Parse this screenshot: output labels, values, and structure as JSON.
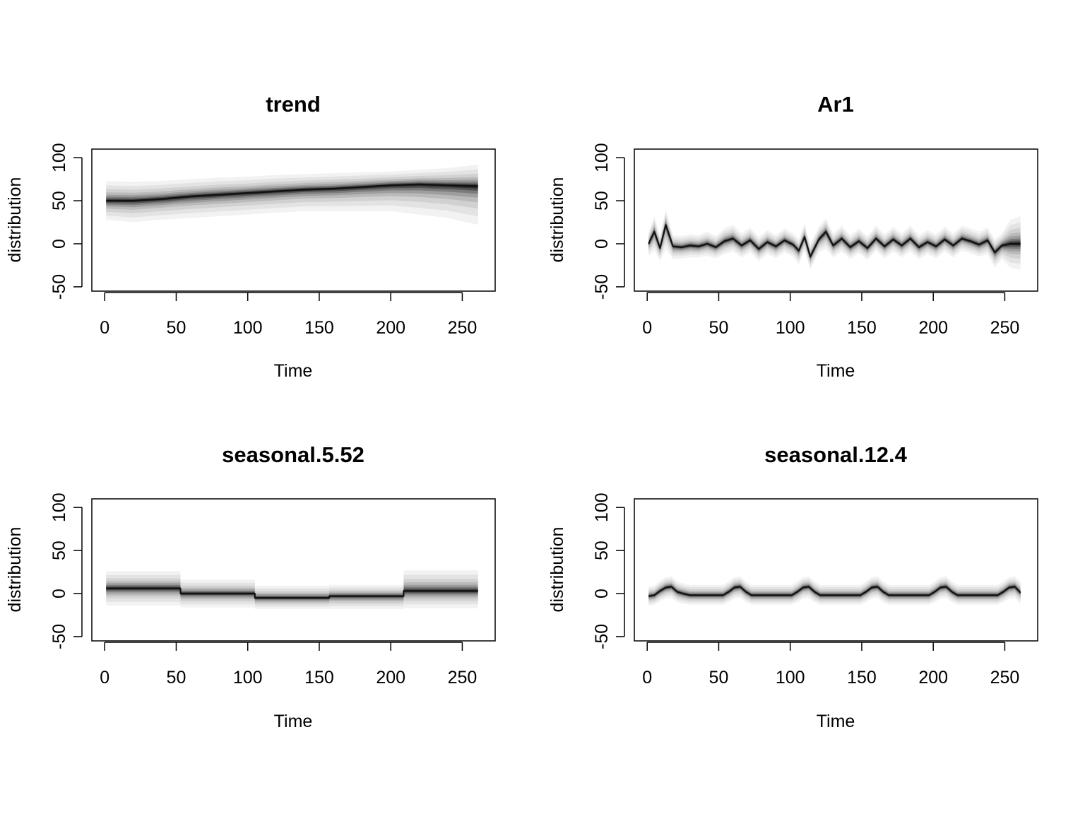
{
  "chart_data": [
    {
      "type": "area",
      "title": "trend",
      "xlabel": "Time",
      "ylabel": "distribution",
      "xlim": [
        -9,
        273
      ],
      "ylim": [
        -55,
        110
      ],
      "xticks": [
        0,
        50,
        100,
        150,
        200,
        250
      ],
      "yticks": [
        -50,
        0,
        50,
        100
      ],
      "grid": false,
      "legend": "none",
      "series": [
        {
          "x": [
            1,
            20,
            40,
            60,
            80,
            100,
            120,
            140,
            160,
            180,
            200,
            220,
            240,
            261
          ],
          "median": [
            50,
            50,
            52,
            55,
            57,
            59,
            61,
            63,
            64,
            66,
            68,
            69,
            68,
            67
          ],
          "lower": [
            28,
            25,
            28,
            30,
            32,
            34,
            36,
            38,
            38,
            38,
            38,
            34,
            30,
            22
          ],
          "upper": [
            73,
            72,
            73,
            75,
            77,
            78,
            80,
            81,
            82,
            83,
            84,
            86,
            88,
            92
          ]
        }
      ]
    },
    {
      "type": "area",
      "title": "Ar1",
      "xlabel": "Time",
      "ylabel": "distribution",
      "xlim": [
        -9,
        273
      ],
      "ylim": [
        -55,
        110
      ],
      "xticks": [
        0,
        50,
        100,
        150,
        200,
        250
      ],
      "yticks": [
        -50,
        0,
        50,
        100
      ],
      "grid": false,
      "legend": "none",
      "series": [
        {
          "x": [
            1,
            5,
            9,
            13,
            18,
            24,
            30,
            36,
            42,
            48,
            54,
            60,
            66,
            72,
            78,
            84,
            90,
            96,
            102,
            106,
            110,
            114,
            120,
            125,
            130,
            136,
            142,
            148,
            154,
            160,
            166,
            172,
            178,
            184,
            190,
            196,
            202,
            208,
            214,
            220,
            226,
            232,
            238,
            243,
            248,
            254,
            261
          ],
          "median": [
            0,
            14,
            -5,
            22,
            -3,
            -4,
            -2,
            -3,
            0,
            -4,
            3,
            6,
            -2,
            4,
            -6,
            2,
            -3,
            4,
            -1,
            -8,
            8,
            -15,
            5,
            14,
            -2,
            6,
            -4,
            3,
            -5,
            6,
            -3,
            5,
            -2,
            6,
            -4,
            2,
            -3,
            5,
            -2,
            6,
            3,
            -1,
            4,
            -10,
            -2,
            0,
            0
          ],
          "lower": [
            -14,
            -8,
            -20,
            -6,
            -18,
            -17,
            -16,
            -16,
            -14,
            -17,
            -12,
            -9,
            -16,
            -10,
            -20,
            -12,
            -17,
            -10,
            -15,
            -24,
            -8,
            -30,
            -10,
            -6,
            -16,
            -9,
            -18,
            -11,
            -19,
            -8,
            -17,
            -9,
            -16,
            -9,
            -18,
            -12,
            -17,
            -9,
            -16,
            -8,
            -11,
            -15,
            -12,
            -28,
            -18,
            -28,
            -30
          ],
          "upper": [
            14,
            32,
            10,
            40,
            10,
            9,
            11,
            10,
            14,
            9,
            18,
            22,
            12,
            19,
            8,
            16,
            10,
            18,
            12,
            5,
            24,
            0,
            20,
            30,
            12,
            21,
            10,
            18,
            9,
            21,
            11,
            20,
            12,
            21,
            10,
            16,
            11,
            20,
            12,
            21,
            18,
            14,
            19,
            5,
            12,
            28,
            32
          ]
        }
      ]
    },
    {
      "type": "area",
      "title": "seasonal.5.52",
      "xlabel": "Time",
      "ylabel": "distribution",
      "xlim": [
        -9,
        273
      ],
      "ylim": [
        -55,
        110
      ],
      "xticks": [
        0,
        50,
        100,
        150,
        200,
        250
      ],
      "yticks": [
        -50,
        0,
        50,
        100
      ],
      "grid": false,
      "legend": "none",
      "series": [
        {
          "x": [
            1,
            53,
            53,
            105,
            105,
            157,
            157,
            209,
            209,
            261
          ],
          "median": [
            6,
            6,
            0,
            0,
            -5,
            -5,
            -3,
            -3,
            3,
            3
          ],
          "lower": [
            -14,
            -14,
            -16,
            -16,
            -18,
            -18,
            -18,
            -18,
            -17,
            -17
          ],
          "upper": [
            26,
            26,
            16,
            16,
            9,
            9,
            10,
            10,
            27,
            27
          ]
        }
      ]
    },
    {
      "type": "area",
      "title": "seasonal.12.4",
      "xlabel": "Time",
      "ylabel": "distribution",
      "xlim": [
        -9,
        273
      ],
      "ylim": [
        -55,
        110
      ],
      "xticks": [
        0,
        50,
        100,
        150,
        200,
        250
      ],
      "yticks": [
        -50,
        0,
        50,
        100
      ],
      "grid": false,
      "legend": "none",
      "series": [
        {
          "x": [
            1,
            5,
            9,
            13,
            17,
            21,
            25,
            30,
            36,
            42,
            48,
            53,
            57,
            61,
            65,
            69,
            73,
            78,
            84,
            90,
            96,
            101,
            105,
            109,
            113,
            117,
            121,
            126,
            132,
            138,
            144,
            149,
            153,
            157,
            161,
            165,
            169,
            174,
            180,
            186,
            192,
            197,
            201,
            205,
            209,
            213,
            217,
            222,
            228,
            234,
            240,
            245,
            249,
            253,
            257,
            261
          ],
          "median": [
            -3,
            -2,
            3,
            7,
            8,
            2,
            0,
            -2,
            -2,
            -2,
            -2,
            -2,
            2,
            7,
            8,
            2,
            -2,
            -2,
            -2,
            -2,
            -2,
            -2,
            2,
            7,
            8,
            2,
            -2,
            -2,
            -2,
            -2,
            -2,
            -2,
            2,
            7,
            8,
            2,
            -2,
            -2,
            -2,
            -2,
            -2,
            -2,
            2,
            7,
            8,
            2,
            -2,
            -2,
            -2,
            -2,
            -2,
            -2,
            2,
            7,
            8,
            1
          ],
          "lower": [
            -14,
            -13,
            -9,
            -6,
            -5,
            -10,
            -12,
            -13,
            -13,
            -13,
            -13,
            -13,
            -10,
            -6,
            -5,
            -10,
            -13,
            -13,
            -13,
            -13,
            -13,
            -13,
            -10,
            -6,
            -5,
            -10,
            -13,
            -13,
            -13,
            -13,
            -13,
            -13,
            -10,
            -6,
            -5,
            -10,
            -13,
            -13,
            -13,
            -13,
            -13,
            -13,
            -10,
            -6,
            -5,
            -10,
            -13,
            -13,
            -13,
            -13,
            -13,
            -13,
            -10,
            -6,
            -5,
            -12
          ],
          "upper": [
            8,
            9,
            15,
            19,
            20,
            14,
            12,
            10,
            10,
            10,
            10,
            10,
            14,
            19,
            20,
            14,
            10,
            10,
            10,
            10,
            10,
            10,
            14,
            19,
            20,
            14,
            10,
            10,
            10,
            10,
            10,
            10,
            14,
            19,
            20,
            14,
            10,
            10,
            10,
            10,
            10,
            10,
            14,
            19,
            20,
            14,
            10,
            10,
            10,
            10,
            10,
            10,
            14,
            19,
            20,
            14
          ]
        }
      ]
    }
  ]
}
